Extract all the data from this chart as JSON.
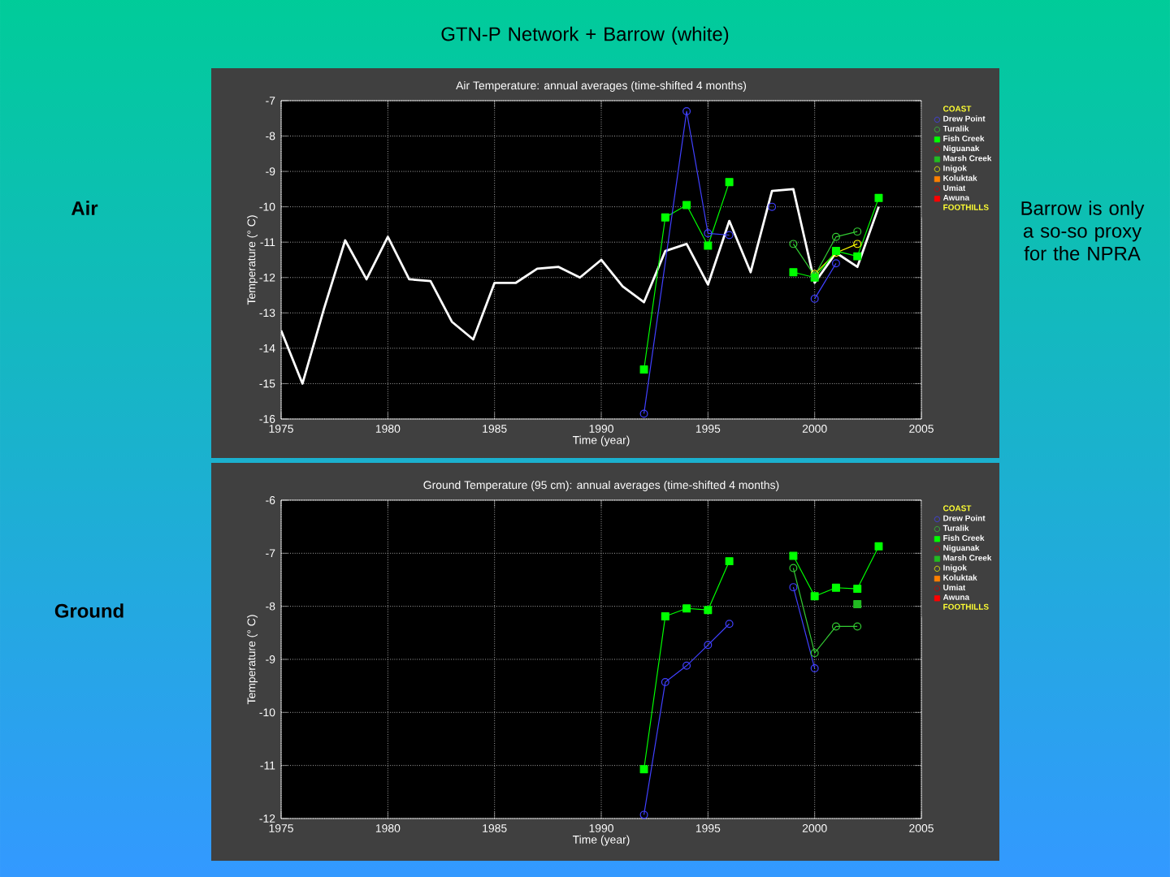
{
  "chart_data": [
    {
      "type": "line",
      "title": "Air Temperature: annual averages (time-shifted 4 months)",
      "xlabel": "Time (year)",
      "ylabel": "Temperature (° C)",
      "xlim": [
        1975,
        2005
      ],
      "xticks": [
        1975,
        1980,
        1985,
        1990,
        1995,
        2000,
        2005
      ],
      "ylim": [
        -16,
        -7
      ],
      "yticks": [
        -16,
        -15,
        -14,
        -13,
        -12,
        -11,
        -10,
        -9,
        -8,
        -7
      ],
      "grid": true,
      "legend": "right",
      "annotations": [
        "COAST",
        "FOOTHILLS",
        "GTN-P  Network + Barrow (white)",
        "Air",
        "Barrow is only a so-so proxy for the NPRA"
      ],
      "series": [
        {
          "name": "Drew Point",
          "color": "#4040ff",
          "marker": "circle",
          "x": [
            1992,
            1994,
            1995,
            1996,
            1997,
            1998,
            1999,
            2000,
            2001
          ],
          "values": [
            -15.85,
            -7.3,
            -10.75,
            -10.8,
            null,
            -10.0,
            null,
            -12.6,
            -11.6
          ]
        },
        {
          "name": "Turalik",
          "color": "#33cc33",
          "marker": "circle",
          "x": [
            1999,
            2000,
            2001,
            2002
          ],
          "values": [
            -11.05,
            -11.95,
            -10.85,
            -10.7
          ]
        },
        {
          "name": "Fish Creek",
          "color": "#00ff00",
          "marker": "square",
          "x": [
            1992,
            1993,
            1994,
            1995,
            1996,
            1997,
            1998,
            1999,
            2000,
            2001,
            2002,
            2003
          ],
          "values": [
            -14.6,
            -10.3,
            -9.95,
            -11.1,
            -9.3,
            null,
            null,
            -11.85,
            -12.0,
            -11.25,
            -11.4,
            -9.75
          ]
        },
        {
          "name": "Niguanak",
          "color": "#cc0000",
          "marker": "circle"
        },
        {
          "name": "Marsh Creek",
          "color": "#22bb22",
          "marker": "square"
        },
        {
          "name": "Inigok",
          "color": "#ffff00",
          "marker": "circle",
          "x": [
            2000,
            2001,
            2002
          ],
          "values": [
            -11.9,
            -11.3,
            -11.05
          ]
        },
        {
          "name": "Koluktak",
          "color": "#ff8000",
          "marker": "square"
        },
        {
          "name": "Umiat",
          "color": "#cc0000",
          "marker": "circle"
        },
        {
          "name": "Awuna",
          "color": "#ff0000",
          "marker": "square"
        },
        {
          "color": "#ffffff",
          "marker": "none",
          "x": [
            1975,
            1976,
            1977,
            1978,
            1979,
            1980,
            1981,
            1982,
            1983,
            1984,
            1985,
            1986,
            1987,
            1988,
            1989,
            1990,
            1991,
            1992,
            1993,
            1994,
            1995,
            1996,
            1997,
            1998,
            1999,
            2000,
            2001,
            2002,
            2003
          ],
          "values": [
            -13.5,
            -15.0,
            -12.9,
            -10.95,
            -12.05,
            -10.85,
            -12.05,
            -12.1,
            -13.25,
            -13.75,
            -12.15,
            -12.15,
            -11.75,
            -11.7,
            -12.0,
            -11.5,
            -12.25,
            -12.7,
            -11.25,
            -11.05,
            -12.2,
            -10.4,
            -11.85,
            -9.55,
            -9.5,
            -12.15,
            -11.3,
            -11.7,
            -10.0
          ]
        }
      ]
    },
    {
      "type": "line",
      "title": "Ground Temperature (95 cm): annual averages (time-shifted 4 months)",
      "xlabel": "Time (year)",
      "ylabel": "Temperature (° C)",
      "xlim": [
        1975,
        2005
      ],
      "xticks": [
        1975,
        1980,
        1985,
        1990,
        1995,
        2000,
        2005
      ],
      "ylim": [
        -12,
        -6
      ],
      "yticks": [
        -12,
        -11,
        -10,
        -9,
        -8,
        -7,
        -6
      ],
      "grid": true,
      "legend": "right",
      "annotations": [
        "COAST",
        "FOOTHILLS",
        "Ground"
      ],
      "series": [
        {
          "name": "Drew Point",
          "color": "#4040ff",
          "marker": "circle",
          "x": [
            1992,
            1993,
            1994,
            1995,
            1996,
            1997,
            1998,
            1999,
            2000
          ],
          "values": [
            -11.93,
            -9.43,
            -9.12,
            -8.73,
            -8.33,
            null,
            null,
            -7.64,
            -9.17
          ]
        },
        {
          "name": "Turalik",
          "color": "#33cc33",
          "marker": "circle",
          "x": [
            1999,
            2000,
            2001,
            2002
          ],
          "values": [
            -7.28,
            -8.88,
            -8.38,
            -8.38
          ]
        },
        {
          "name": "Fish Creek",
          "color": "#00ff00",
          "marker": "square",
          "x": [
            1992,
            1993,
            1994,
            1995,
            1996,
            1997,
            1998,
            1999,
            2000,
            2001,
            2002,
            2003
          ],
          "values": [
            -11.07,
            -8.19,
            -8.04,
            -8.07,
            -7.15,
            null,
            null,
            -7.05,
            -7.81,
            -7.65,
            -7.67,
            -6.87
          ]
        },
        {
          "name": "Niguanak",
          "color": "#cc0000",
          "marker": "circle"
        },
        {
          "name": "Marsh Creek",
          "color": "#22bb22",
          "marker": "square",
          "x": [
            2002
          ],
          "values": [
            -7.96
          ]
        },
        {
          "name": "Inigok",
          "color": "#ffff00",
          "marker": "circle"
        },
        {
          "name": "Koluktak",
          "color": "#ff8000",
          "marker": "square"
        },
        {
          "name": "Umiat",
          "color": "#cc0000",
          "marker": "circle"
        },
        {
          "name": "Awuna",
          "color": "#ff0000",
          "marker": "square"
        }
      ]
    }
  ]
}
